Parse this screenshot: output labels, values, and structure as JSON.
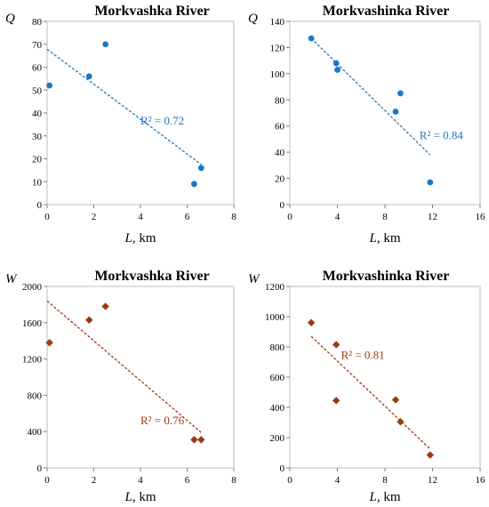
{
  "chart_data": [
    {
      "type": "scatter",
      "title": "Morkvashka River",
      "ylabel": "Q",
      "xlabel": {
        "var": "L",
        "unit": ", km"
      },
      "xlim": [
        0,
        8
      ],
      "xticks": [
        0,
        2,
        4,
        6,
        8
      ],
      "ylim": [
        0,
        80
      ],
      "yticks": [
        0,
        10,
        20,
        30,
        40,
        50,
        60,
        70,
        80
      ],
      "marker": "circle",
      "color": "#1f77c4",
      "points": [
        [
          0.1,
          52
        ],
        [
          1.8,
          56
        ],
        [
          2.5,
          70
        ],
        [
          6.3,
          9
        ],
        [
          6.6,
          16
        ]
      ],
      "trendline": {
        "x": [
          0,
          6.6
        ],
        "y": [
          67.8,
          17.5
        ]
      },
      "annotation": "R² = 0.72",
      "annotation_at": [
        4.0,
        35
      ]
    },
    {
      "type": "scatter",
      "title": "Morkvashinka River",
      "ylabel": "Q",
      "xlabel": {
        "var": "L",
        "unit": ", km"
      },
      "xlim": [
        0,
        16
      ],
      "xticks": [
        0,
        4,
        8,
        12,
        16
      ],
      "ylim": [
        0,
        140
      ],
      "yticks": [
        0,
        20,
        40,
        60,
        80,
        100,
        120,
        140
      ],
      "marker": "circle",
      "color": "#1f77c4",
      "points": [
        [
          1.8,
          127
        ],
        [
          3.9,
          108
        ],
        [
          4.0,
          103
        ],
        [
          8.9,
          71
        ],
        [
          9.3,
          85
        ],
        [
          11.8,
          17
        ]
      ],
      "trendline": {
        "x": [
          1.8,
          11.8
        ],
        "y": [
          127,
          38
        ]
      },
      "annotation": "R² = 0.84",
      "annotation_at": [
        10.9,
        50
      ]
    },
    {
      "type": "scatter",
      "title": "Morkvashka River",
      "ylabel": "W",
      "xlabel": {
        "var": "L",
        "unit": ", km"
      },
      "xlim": [
        0,
        8
      ],
      "xticks": [
        0,
        2,
        4,
        6,
        8
      ],
      "ylim": [
        0,
        2000
      ],
      "yticks": [
        0,
        400,
        800,
        1200,
        1600,
        2000
      ],
      "marker": "diamond",
      "color": "#9c3a10",
      "points": [
        [
          0.1,
          1380
        ],
        [
          1.8,
          1630
        ],
        [
          2.5,
          1780
        ],
        [
          6.3,
          310
        ],
        [
          6.6,
          310
        ]
      ],
      "trendline": {
        "x": [
          0,
          6.6
        ],
        "y": [
          1840,
          390
        ]
      },
      "annotation": "R² = 0.76",
      "annotation_at": [
        4.0,
        480
      ]
    },
    {
      "type": "scatter",
      "title": "Morkvashinka River",
      "ylabel": "W",
      "xlabel": {
        "var": "L",
        "unit": ", km"
      },
      "xlim": [
        0,
        16
      ],
      "xticks": [
        0,
        4,
        8,
        12,
        16
      ],
      "ylim": [
        0,
        1200
      ],
      "yticks": [
        0,
        200,
        400,
        600,
        800,
        1000,
        1200
      ],
      "marker": "diamond",
      "color": "#9c3a10",
      "points": [
        [
          1.8,
          960
        ],
        [
          3.9,
          815
        ],
        [
          3.9,
          445
        ],
        [
          8.9,
          450
        ],
        [
          9.3,
          305
        ],
        [
          11.8,
          85
        ]
      ],
      "trendline": {
        "x": [
          1.8,
          11.8
        ],
        "y": [
          870,
          125
        ]
      },
      "annotation": "R² = 0.81",
      "annotation_at": [
        4.3,
        720
      ]
    }
  ]
}
